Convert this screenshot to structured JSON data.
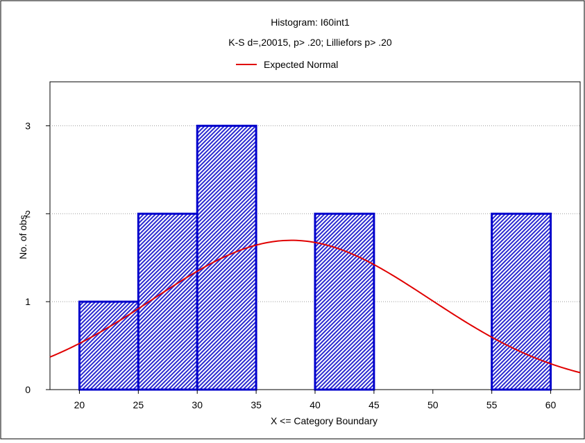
{
  "chart_data": {
    "type": "bar",
    "title": "Histogram: I60int1",
    "subtitle": "K-S d=,20015, p> .20; Lilliefors p> .20",
    "xlabel": "X <= Category Boundary",
    "ylabel": "No. of obs.",
    "xlim": [
      17.5,
      62.5
    ],
    "ylim": [
      0,
      3.5
    ],
    "x_ticks": [
      "20",
      "25",
      "30",
      "35",
      "40",
      "45",
      "50",
      "55",
      "60"
    ],
    "y_ticks": [
      "0",
      "1",
      "2",
      "3"
    ],
    "bins": [
      {
        "from": 20,
        "to": 25,
        "count": 1
      },
      {
        "from": 25,
        "to": 30,
        "count": 2
      },
      {
        "from": 30,
        "to": 35,
        "count": 3
      },
      {
        "from": 35,
        "to": 40,
        "count": 0
      },
      {
        "from": 40,
        "to": 45,
        "count": 2
      },
      {
        "from": 45,
        "to": 50,
        "count": 0
      },
      {
        "from": 50,
        "to": 55,
        "count": 0
      },
      {
        "from": 55,
        "to": 60,
        "count": 2
      }
    ],
    "normal_curve": {
      "name": "Expected Normal",
      "mean": 38,
      "sd": 11.75,
      "n": 10,
      "bin_width": 5,
      "color": "#e00000"
    },
    "bar_color": "#0000cc",
    "grid": true,
    "legend_position": "top"
  }
}
